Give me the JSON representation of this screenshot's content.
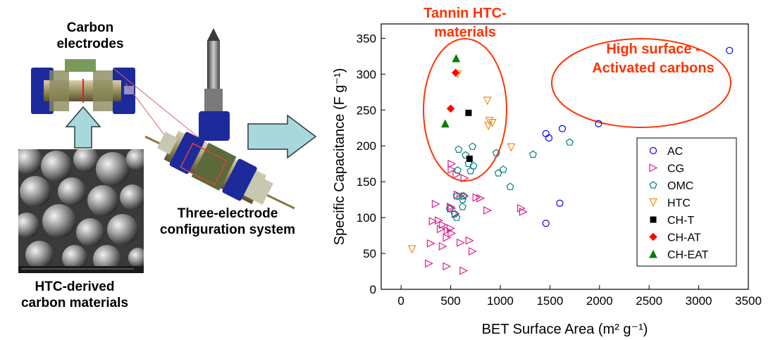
{
  "left_panel": {
    "carbon_electrodes_label": [
      "Carbon",
      "electrodes"
    ],
    "three_electrode_label": [
      "Three-electrode",
      "configuration system"
    ],
    "htc_derived_label": [
      "HTC-derived",
      "carbon materials"
    ]
  },
  "colors": {
    "AC": "#0000ff",
    "CG": "#e0208a",
    "OMC": "#008080",
    "HTC": "#f08c1e",
    "CH-T": "#000000",
    "CH-AT": "#ff0000",
    "CH-EAT": "#008000",
    "annotation": "#ff3300",
    "arrow_fill": "#a8d8dc"
  },
  "chart_data": {
    "type": "scatter",
    "xlabel": "BET Surface Area (m² g⁻¹)",
    "ylabel": "Specific Capacitance (F g⁻¹)",
    "xlim": [
      -200,
      3500
    ],
    "ylim": [
      0,
      370
    ],
    "xticks": [
      0,
      500,
      1000,
      1500,
      2000,
      2500,
      3000,
      3500
    ],
    "yticks": [
      0,
      50,
      100,
      150,
      200,
      250,
      300,
      350
    ],
    "legend_position": "right",
    "annotations": [
      {
        "lines": [
          "Tannin HTC-",
          "materials"
        ]
      },
      {
        "lines": [
          "High surface -",
          "Activated carbons"
        ]
      }
    ],
    "series": [
      {
        "name": "AC",
        "marker": "circle-open",
        "points": [
          [
            3310,
            333
          ],
          [
            1990,
            231
          ],
          [
            1625,
            224
          ],
          [
            1460,
            217
          ],
          [
            1490,
            211
          ],
          [
            1600,
            120
          ],
          [
            1460,
            92
          ]
        ]
      },
      {
        "name": "CG",
        "marker": "triangle-right-open",
        "points": [
          [
            510,
            175
          ],
          [
            510,
            167
          ],
          [
            560,
            160
          ],
          [
            640,
            155
          ],
          [
            570,
            132
          ],
          [
            600,
            130
          ],
          [
            640,
            130
          ],
          [
            760,
            128
          ],
          [
            800,
            127
          ],
          [
            870,
            110
          ],
          [
            1210,
            113
          ],
          [
            1230,
            108
          ],
          [
            500,
            115
          ],
          [
            510,
            113
          ],
          [
            550,
            105
          ],
          [
            350,
            119
          ],
          [
            420,
            90
          ],
          [
            400,
            84
          ],
          [
            320,
            95
          ],
          [
            380,
            96
          ],
          [
            500,
            85
          ],
          [
            470,
            82
          ],
          [
            460,
            72
          ],
          [
            510,
            78
          ],
          [
            600,
            65
          ],
          [
            690,
            68
          ],
          [
            720,
            53
          ],
          [
            420,
            60
          ],
          [
            300,
            64
          ],
          [
            280,
            36
          ],
          [
            460,
            32
          ],
          [
            630,
            26
          ]
        ]
      },
      {
        "name": "OMC",
        "marker": "pentagon-open",
        "points": [
          [
            580,
            195
          ],
          [
            650,
            187
          ],
          [
            720,
            199
          ],
          [
            680,
            175
          ],
          [
            730,
            172
          ],
          [
            700,
            165
          ],
          [
            570,
            166
          ],
          [
            560,
            130
          ],
          [
            620,
            125
          ],
          [
            620,
            115
          ],
          [
            630,
            130
          ],
          [
            490,
            112
          ],
          [
            540,
            105
          ],
          [
            560,
            100
          ],
          [
            960,
            190
          ],
          [
            980,
            162
          ],
          [
            1030,
            167
          ],
          [
            1100,
            143
          ],
          [
            1330,
            188
          ],
          [
            1700,
            205
          ]
        ]
      },
      {
        "name": "HTC",
        "marker": "triangle-down-open",
        "points": [
          [
            110,
            56
          ],
          [
            570,
            300
          ],
          [
            870,
            263
          ],
          [
            890,
            235
          ],
          [
            880,
            228
          ],
          [
            920,
            232
          ],
          [
            1110,
            198
          ]
        ]
      },
      {
        "name": "CH-T",
        "marker": "square-filled",
        "points": [
          [
            680,
            246
          ],
          [
            690,
            182
          ]
        ]
      },
      {
        "name": "CH-AT",
        "marker": "diamond-filled",
        "points": [
          [
            550,
            302
          ],
          [
            500,
            252
          ]
        ]
      },
      {
        "name": "CH-EAT",
        "marker": "triangle-up-filled",
        "points": [
          [
            555,
            322
          ],
          [
            445,
            231
          ]
        ]
      }
    ]
  }
}
